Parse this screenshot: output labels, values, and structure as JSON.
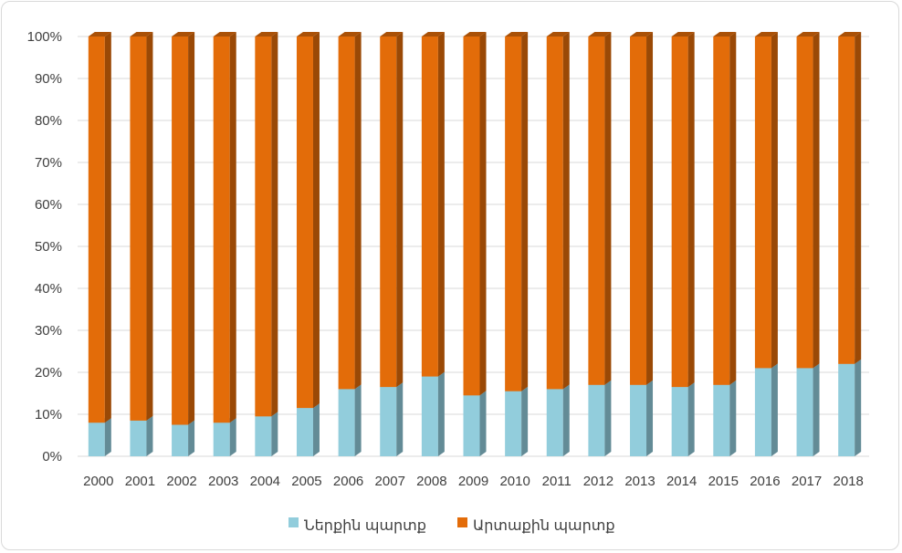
{
  "chart_data": {
    "type": "bar",
    "stacked": true,
    "percent_stacked": true,
    "style": "3d-column",
    "categories": [
      "2000",
      "2001",
      "2002",
      "2003",
      "2004",
      "2005",
      "2006",
      "2007",
      "2008",
      "2009",
      "2010",
      "2011",
      "2012",
      "2013",
      "2014",
      "2015",
      "2016",
      "2017",
      "2018"
    ],
    "series": [
      {
        "name": "Ներքին պարտք",
        "color": "#92cddc",
        "values": [
          8,
          8.5,
          7.5,
          8,
          9.5,
          11.5,
          16,
          16.5,
          19,
          14.5,
          15.5,
          16,
          17,
          17,
          16.5,
          17,
          21,
          21,
          22
        ]
      },
      {
        "name": "Արտաքին պարտք",
        "color": "#e36c09",
        "values": [
          92,
          91.5,
          92.5,
          92,
          90.5,
          88.5,
          84,
          83.5,
          81,
          85.5,
          84.5,
          84,
          83,
          83,
          83.5,
          83,
          79,
          79,
          78
        ]
      }
    ],
    "y_ticks": [
      "0%",
      "10%",
      "20%",
      "30%",
      "40%",
      "50%",
      "60%",
      "70%",
      "80%",
      "90%",
      "100%"
    ],
    "ylim": [
      0,
      100
    ],
    "grid": true,
    "legend": "bottom"
  },
  "legend": {
    "items": [
      {
        "label": "Ներքին պարտք",
        "color": "#92cddc"
      },
      {
        "label": "Արտաքին պարտք",
        "color": "#e36c09"
      }
    ]
  }
}
